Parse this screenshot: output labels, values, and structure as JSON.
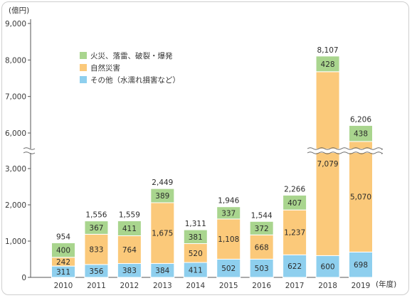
{
  "chart_data": {
    "type": "bar",
    "stacked": true,
    "y_unit_label": "(億円)",
    "x_unit_label": "(年度)",
    "y_break": {
      "from": 3000,
      "to": 6000
    },
    "ylim": [
      0,
      9000
    ],
    "yticks": [
      "0",
      "1,000",
      "2,000",
      "3,000",
      "6,000",
      "7,000",
      "8,000",
      "9,000"
    ],
    "categories": [
      "2010",
      "2011",
      "2012",
      "2013",
      "2014",
      "2015",
      "2016",
      "2017",
      "2018",
      "2019"
    ],
    "series": [
      {
        "name": "その他（水濡れ損害など）",
        "color": "#8ecfee",
        "values": [
          311,
          356,
          383,
          384,
          411,
          502,
          503,
          622,
          600,
          698
        ]
      },
      {
        "name": "自然災害",
        "color": "#fbc97a",
        "values": [
          242,
          833,
          764,
          1675,
          520,
          1108,
          668,
          1237,
          7079,
          5070
        ]
      },
      {
        "name": "火災、落雷、破裂・爆発",
        "color": "#a9d58e",
        "values": [
          400,
          367,
          411,
          389,
          381,
          337,
          372,
          407,
          428,
          438
        ]
      }
    ],
    "value_labels": [
      [
        "311",
        "356",
        "383",
        "384",
        "411",
        "502",
        "503",
        "622",
        "600",
        "698"
      ],
      [
        "242",
        "833",
        "764",
        "1,675",
        "520",
        "1,108",
        "668",
        "1,237",
        "7,079",
        "5,070"
      ],
      [
        "400",
        "367",
        "411",
        "389",
        "381",
        "337",
        "372",
        "407",
        "428",
        "438"
      ]
    ],
    "totals": [
      954,
      1556,
      1559,
      2449,
      1311,
      1946,
      1544,
      2266,
      8107,
      6206
    ],
    "total_labels": [
      "954",
      "1,556",
      "1,559",
      "2,449",
      "1,311",
      "1,946",
      "1,544",
      "2,266",
      "8,107",
      "6,206"
    ],
    "legend_position": "top-left",
    "grid": false
  }
}
